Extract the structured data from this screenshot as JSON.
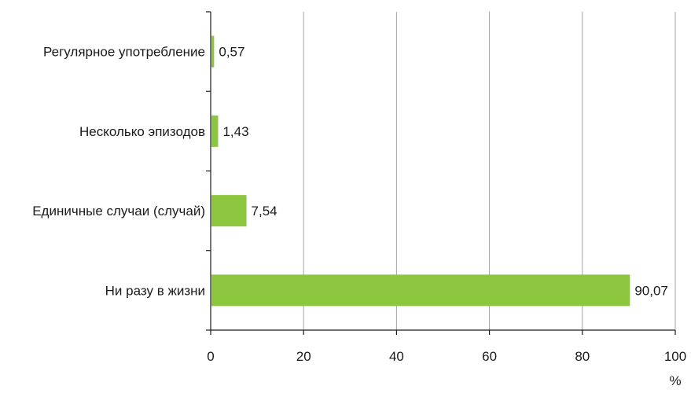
{
  "chart_data": {
    "type": "bar",
    "orientation": "horizontal",
    "categories": [
      "Регулярное употребление",
      "Несколько эпизодов",
      "Единичные случаи (случай)",
      "Ни разу в жизни"
    ],
    "values": [
      0.57,
      1.43,
      7.54,
      90.07
    ],
    "value_labels": [
      "0,57",
      "1,43",
      "7,54",
      "90,07"
    ],
    "xlim": [
      0,
      100
    ],
    "x_ticks": [
      0,
      20,
      40,
      60,
      80,
      100
    ],
    "x_unit": "%",
    "grid": "vertical",
    "legend": "none",
    "colors": {
      "bar": "#8cc63f",
      "grid": "#a6a6a6",
      "axis": "#1a1a1a"
    }
  }
}
